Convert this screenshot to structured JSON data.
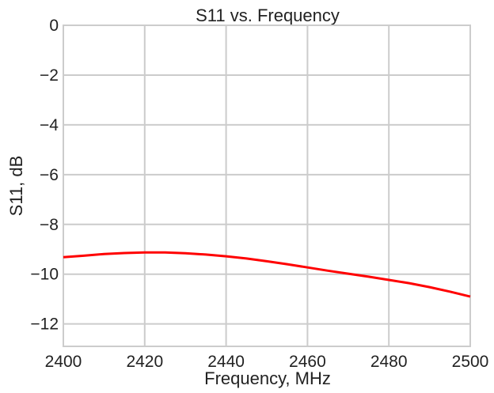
{
  "chart_data": {
    "type": "line",
    "title": "S11 vs. Frequency",
    "xlabel": "Frequency, MHz",
    "ylabel": "S11, dB",
    "xlim": [
      2400,
      2500
    ],
    "ylim": [
      -12.9,
      0
    ],
    "xticks": [
      2400,
      2420,
      2440,
      2460,
      2480,
      2500
    ],
    "yticks": [
      0,
      -2,
      -4,
      -6,
      -8,
      -10,
      -12
    ],
    "xtick_labels": [
      "2400",
      "2420",
      "2440",
      "2460",
      "2480",
      "2500"
    ],
    "ytick_labels": [
      "0",
      "−2",
      "−4",
      "−6",
      "−8",
      "−10",
      "−12"
    ],
    "grid": true,
    "series": [
      {
        "color": "#ff0000",
        "x": [
          2400,
          2405,
          2410,
          2415,
          2420,
          2425,
          2430,
          2435,
          2440,
          2445,
          2450,
          2455,
          2460,
          2465,
          2470,
          2475,
          2480,
          2485,
          2490,
          2495,
          2500
        ],
        "y": [
          -9.32,
          -9.26,
          -9.19,
          -9.15,
          -9.13,
          -9.13,
          -9.16,
          -9.21,
          -9.28,
          -9.37,
          -9.48,
          -9.6,
          -9.73,
          -9.86,
          -9.98,
          -10.1,
          -10.23,
          -10.36,
          -10.52,
          -10.7,
          -10.9
        ]
      }
    ]
  }
}
